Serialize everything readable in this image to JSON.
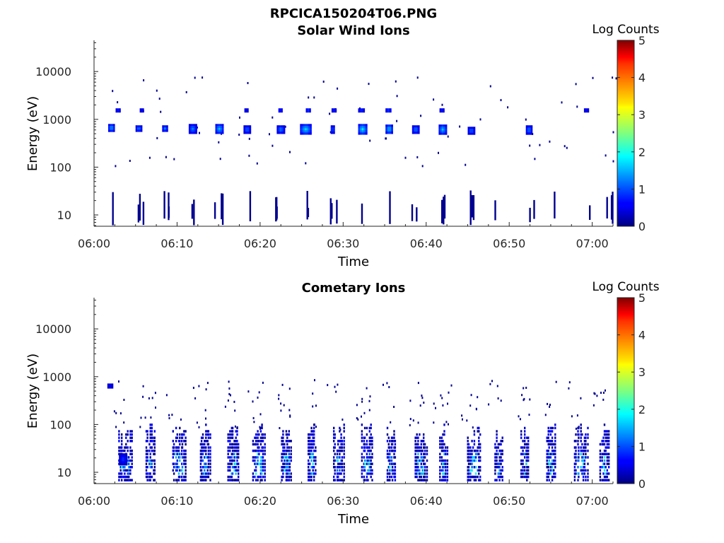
{
  "figure": {
    "title": "RPCICA150204T06.PNG"
  },
  "panels": [
    {
      "id": "sw",
      "title": "Solar Wind Ions",
      "xlabel": "Time",
      "ylabel": "Energy (eV)",
      "colorbar_label": "Log Counts"
    },
    {
      "id": "com",
      "title": "Cometary Ions",
      "xlabel": "Time",
      "ylabel": "Energy (eV)",
      "colorbar_label": "Log Counts"
    }
  ],
  "chart_data": [
    {
      "type": "heatmap",
      "title": "Solar Wind Ions",
      "xlabel": "Time",
      "ylabel": "Energy (eV)",
      "x_ticks": [
        "06:00",
        "06:10",
        "06:20",
        "06:30",
        "06:40",
        "06:50",
        "07:00"
      ],
      "x_tick_minutes": [
        0,
        10,
        20,
        30,
        40,
        50,
        60
      ],
      "xlim_minutes": [
        0,
        62.5
      ],
      "y_scale": "log",
      "y_ticks": [
        "10",
        "100",
        "1000",
        "10000"
      ],
      "y_tick_values": [
        10,
        100,
        1000,
        10000
      ],
      "ylim": [
        5.8,
        45000
      ],
      "colorbar": {
        "label": "Log Counts",
        "ticks": [
          "0",
          "1",
          "2",
          "3",
          "4",
          "5"
        ],
        "range": [
          0,
          5
        ],
        "colormap": "jet"
      },
      "sweep_minutes": [
        2.1,
        5.4,
        8.5,
        11.8,
        15.0,
        18.5,
        22.3,
        25.5,
        28.8,
        32.3,
        35.5,
        38.6,
        41.9,
        45.2,
        48.8,
        52.4,
        55.7,
        59.1,
        62.0
      ],
      "clusters": [
        {
          "t_start": 1.7,
          "t_end": 2.5,
          "e_min": 550,
          "e_max": 800,
          "level": 1.5
        },
        {
          "t_start": 5.0,
          "t_end": 5.8,
          "e_min": 550,
          "e_max": 750,
          "level": 1.3
        },
        {
          "t_start": 8.2,
          "t_end": 8.9,
          "e_min": 550,
          "e_max": 750,
          "level": 1.3
        },
        {
          "t_start": 11.4,
          "t_end": 12.4,
          "e_min": 500,
          "e_max": 800,
          "level": 1.3
        },
        {
          "t_start": 14.6,
          "t_end": 15.6,
          "e_min": 500,
          "e_max": 800,
          "level": 1.6
        },
        {
          "t_start": 18.0,
          "t_end": 18.9,
          "e_min": 500,
          "e_max": 750,
          "level": 1.2
        },
        {
          "t_start": 22.0,
          "t_end": 23.0,
          "e_min": 500,
          "e_max": 750,
          "level": 1.3
        },
        {
          "t_start": 24.8,
          "t_end": 26.2,
          "e_min": 480,
          "e_max": 800,
          "level": 1.7
        },
        {
          "t_start": 28.5,
          "t_end": 29.0,
          "e_min": 500,
          "e_max": 750,
          "level": 1.2
        },
        {
          "t_start": 31.8,
          "t_end": 32.9,
          "e_min": 480,
          "e_max": 800,
          "level": 1.8
        },
        {
          "t_start": 35.1,
          "t_end": 36.0,
          "e_min": 500,
          "e_max": 780,
          "level": 1.7
        },
        {
          "t_start": 38.3,
          "t_end": 39.2,
          "e_min": 500,
          "e_max": 750,
          "level": 1.3
        },
        {
          "t_start": 41.5,
          "t_end": 42.5,
          "e_min": 480,
          "e_max": 780,
          "level": 1.6
        },
        {
          "t_start": 45.0,
          "t_end": 45.9,
          "e_min": 480,
          "e_max": 700,
          "level": 1.2
        },
        {
          "t_start": 52.0,
          "t_end": 52.8,
          "e_min": 480,
          "e_max": 750,
          "level": 1.3
        },
        {
          "t_start": 2.6,
          "t_end": 3.2,
          "e_min": 1400,
          "e_max": 1700,
          "level": 1.0
        },
        {
          "t_start": 5.5,
          "t_end": 6.0,
          "e_min": 1400,
          "e_max": 1700,
          "level": 0.9
        },
        {
          "t_start": 18.1,
          "t_end": 18.6,
          "e_min": 1400,
          "e_max": 1700,
          "level": 0.9
        },
        {
          "t_start": 22.2,
          "t_end": 22.7,
          "e_min": 1400,
          "e_max": 1700,
          "level": 1.1
        },
        {
          "t_start": 25.5,
          "t_end": 26.1,
          "e_min": 1400,
          "e_max": 1700,
          "level": 1.2
        },
        {
          "t_start": 28.6,
          "t_end": 29.2,
          "e_min": 1400,
          "e_max": 1700,
          "level": 1.0
        },
        {
          "t_start": 31.8,
          "t_end": 32.6,
          "e_min": 1400,
          "e_max": 1700,
          "level": 1.1
        },
        {
          "t_start": 35.1,
          "t_end": 35.8,
          "e_min": 1400,
          "e_max": 1700,
          "level": 1.2
        },
        {
          "t_start": 41.6,
          "t_end": 42.2,
          "e_min": 1400,
          "e_max": 1700,
          "level": 1.0
        },
        {
          "t_start": 59.0,
          "t_end": 59.6,
          "e_min": 1400,
          "e_max": 1700,
          "level": 0.9
        }
      ]
    },
    {
      "type": "heatmap",
      "title": "Cometary Ions",
      "xlabel": "Time",
      "ylabel": "Energy (eV)",
      "x_ticks": [
        "06:00",
        "06:10",
        "06:20",
        "06:30",
        "06:40",
        "06:50",
        "07:00"
      ],
      "x_tick_minutes": [
        0,
        10,
        20,
        30,
        40,
        50,
        60
      ],
      "xlim_minutes": [
        0,
        62.5
      ],
      "y_scale": "log",
      "y_ticks": [
        "10",
        "100",
        "1000",
        "10000"
      ],
      "y_tick_values": [
        10,
        100,
        1000,
        10000
      ],
      "ylim": [
        5.8,
        45000
      ],
      "colorbar": {
        "label": "Log Counts",
        "ticks": [
          "0",
          "1",
          "2",
          "3",
          "4",
          "5"
        ],
        "range": [
          0,
          5
        ],
        "colormap": "jet"
      },
      "sweep_minutes": [
        3.3,
        6.6,
        9.8,
        13.1,
        16.5,
        19.5,
        22.9,
        26.1,
        29.2,
        32.6,
        35.6,
        39.0,
        42.0,
        45.3,
        48.6,
        51.8,
        54.8,
        58.2,
        61.3
      ],
      "clusters": [
        {
          "t_start": 1.6,
          "t_end": 2.3,
          "e_min": 570,
          "e_max": 720,
          "level": 0.8
        },
        {
          "t_start": 3.0,
          "t_end": 4.0,
          "e_min": 14,
          "e_max": 25,
          "level": 0.9
        }
      ]
    }
  ]
}
